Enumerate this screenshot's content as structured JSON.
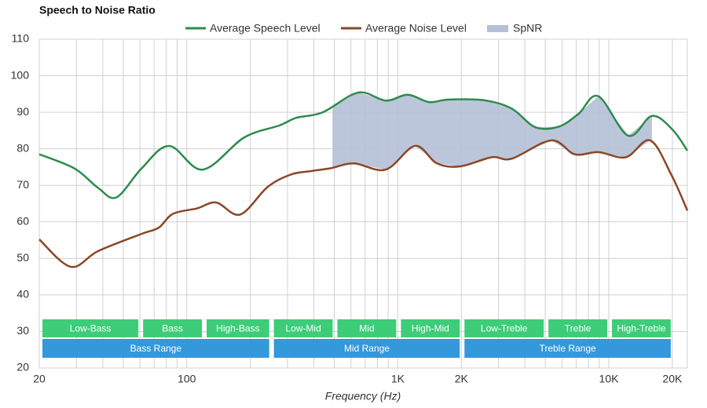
{
  "chart_data": {
    "type": "line",
    "title": "Speech to Noise Ratio",
    "x_label": "Frequency (Hz)",
    "log_x": true,
    "xlim": [
      20,
      23560
    ],
    "ylim": [
      20,
      110
    ],
    "yticks": [
      20,
      30,
      40,
      50,
      60,
      70,
      80,
      90,
      100,
      110
    ],
    "xticks": [
      20,
      100,
      {
        "value": 1000,
        "label": "1K"
      },
      {
        "value": 2000,
        "label": "2K"
      },
      {
        "value": 10000,
        "label": "10K"
      },
      {
        "value": 20000,
        "label": "20K"
      }
    ],
    "xgrid": [
      30,
      40,
      50,
      60,
      70,
      80,
      90,
      200,
      300,
      400,
      500,
      600,
      700,
      800,
      900,
      3000,
      4000,
      5000,
      6000,
      7000,
      8000,
      9000
    ],
    "grid": true,
    "series": [
      {
        "name": "Average Speech Level",
        "color": "#2e8b4e",
        "x": [
          20,
          29.4,
          38,
          46.4,
          61,
          82.5,
          119,
          187,
          275,
          331,
          441,
          649,
          877,
          1115,
          1406,
          1740,
          2564,
          3466,
          4490,
          5805,
          7194,
          8918,
          12360,
          16000,
          20000,
          23560
        ],
        "values": [
          78.5,
          74.6,
          69.3,
          66.7,
          74.6,
          80.8,
          74.3,
          83.1,
          86.4,
          88.5,
          90,
          95.4,
          93.2,
          94.8,
          92.8,
          93.5,
          93.3,
          91,
          85.9,
          86.1,
          89.6,
          94.4,
          83.6,
          89,
          85.3,
          79.5
        ]
      },
      {
        "name": "Average Noise Level",
        "color": "#8b4726",
        "x": [
          20,
          28.2,
          38,
          61,
          73.6,
          86,
          112,
          138,
          179,
          242,
          313,
          388,
          482,
          620,
          877,
          1208,
          1534,
          1983,
          2792,
          3466,
          5333,
          6894,
          8918,
          12046,
          15700,
          19820,
          23560
        ],
        "values": [
          55.2,
          47.7,
          52,
          56.7,
          58.4,
          62.2,
          63.7,
          65.3,
          62,
          69.6,
          73,
          73.9,
          74.7,
          76,
          74.3,
          80.8,
          76,
          75.2,
          77.7,
          77.3,
          82.3,
          78.5,
          79.1,
          77.7,
          82.3,
          72.8,
          63.1
        ]
      }
    ],
    "spnr": {
      "name": "SpNR",
      "color": "#b5c0d6",
      "range": [
        490,
        16000
      ]
    },
    "bands": [
      {
        "label": "Low-Bass",
        "range": [
          20,
          60
        ],
        "row": 1
      },
      {
        "label": "Bass",
        "range": [
          60,
          120
        ],
        "row": 1
      },
      {
        "label": "High-Bass",
        "range": [
          120,
          250
        ],
        "row": 1
      },
      {
        "label": "Low-Mid",
        "range": [
          250,
          500
        ],
        "row": 1
      },
      {
        "label": "Mid",
        "range": [
          500,
          1000
        ],
        "row": 1
      },
      {
        "label": "High-Mid",
        "range": [
          1000,
          2000
        ],
        "row": 1
      },
      {
        "label": "Low-Treble",
        "range": [
          2000,
          5000
        ],
        "row": 1
      },
      {
        "label": "Treble",
        "range": [
          5000,
          10000
        ],
        "row": 1
      },
      {
        "label": "High-Treble",
        "range": [
          10000,
          20000
        ],
        "row": 1
      },
      {
        "label": "Bass Range",
        "range": [
          20,
          250
        ],
        "row": 2
      },
      {
        "label": "Mid Range",
        "range": [
          250,
          2000
        ],
        "row": 2
      },
      {
        "label": "Treble Range",
        "range": [
          2000,
          20000
        ],
        "row": 2
      }
    ]
  }
}
